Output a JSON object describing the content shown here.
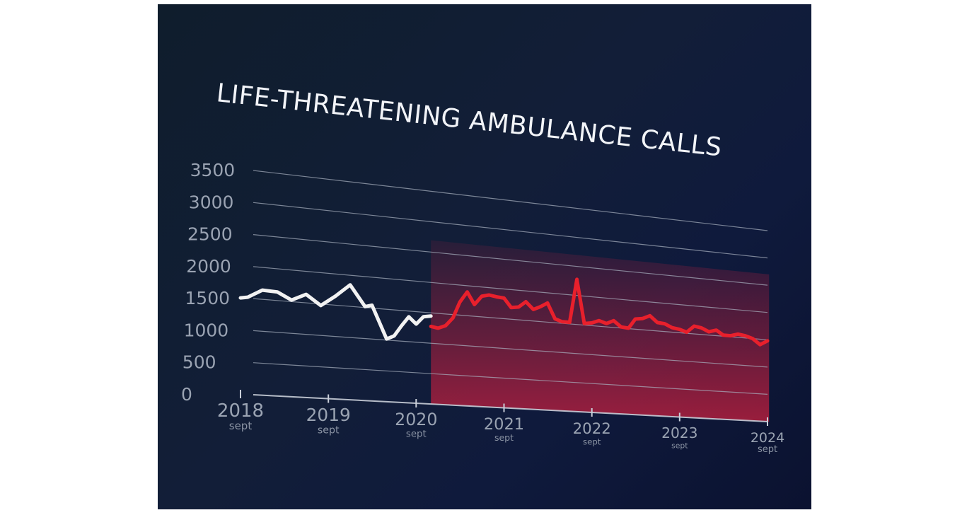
{
  "chart_data": {
    "type": "line",
    "title": "LIFE-THREATENING AMBULANCE CALLS",
    "xlabel": "",
    "ylabel": "",
    "ylim": [
      0,
      3500
    ],
    "y_ticks": [
      "0",
      "500",
      "1000",
      "1500",
      "2000",
      "2500",
      "3000",
      "3500"
    ],
    "x_ticks": [
      {
        "year": "2018",
        "sub": "sept"
      },
      {
        "year": "2019",
        "sub": "sept"
      },
      {
        "year": "2020",
        "sub": "sept"
      },
      {
        "year": "2021",
        "sub": "sept"
      },
      {
        "year": "2022",
        "sub": "sept"
      },
      {
        "year": "2023",
        "sub": "sept"
      },
      {
        "year": "2024",
        "sub": "sept"
      }
    ],
    "grid": true,
    "highlight_region": {
      "from": "2020-11",
      "to": "2024-09",
      "color": "#c8203f"
    },
    "series": [
      {
        "name": "",
        "color": "#f2f2f2",
        "x": [
          "2018-09",
          "2018-10",
          "2018-12",
          "2019-02",
          "2019-04",
          "2019-06",
          "2019-08",
          "2019-10",
          "2019-12",
          "2020-02",
          "2020-03",
          "2020-05",
          "2020-06",
          "2020-07",
          "2020-08",
          "2020-09",
          "2020-10",
          "2020-11"
        ],
        "values": [
          1500,
          1520,
          1650,
          1640,
          1530,
          1640,
          1480,
          1650,
          1850,
          1520,
          1550,
          1020,
          1080,
          1250,
          1410,
          1300,
          1430,
          1450
        ]
      },
      {
        "name": "",
        "color": "#e8202c",
        "x": [
          "2020-11",
          "2020-12",
          "2021-01",
          "2021-02",
          "2021-03",
          "2021-04",
          "2021-05",
          "2021-06",
          "2021-07",
          "2021-08",
          "2021-09",
          "2021-10",
          "2021-11",
          "2021-12",
          "2022-01",
          "2022-02",
          "2022-03",
          "2022-04",
          "2022-05",
          "2022-06",
          "2022-07",
          "2022-08",
          "2022-09",
          "2022-10",
          "2022-11",
          "2022-12",
          "2023-01",
          "2023-02",
          "2023-03",
          "2023-04",
          "2023-05",
          "2023-06",
          "2023-07",
          "2023-08",
          "2023-09",
          "2023-10",
          "2023-11",
          "2023-12",
          "2024-01",
          "2024-02",
          "2024-03",
          "2024-04",
          "2024-05",
          "2024-06",
          "2024-07",
          "2024-08",
          "2024-09"
        ],
        "values": [
          1280,
          1260,
          1310,
          1450,
          1720,
          1900,
          1700,
          1850,
          1880,
          1860,
          1850,
          1700,
          1720,
          1820,
          1700,
          1760,
          1830,
          1570,
          1530,
          1530,
          2280,
          1530,
          1550,
          1600,
          1560,
          1620,
          1520,
          1510,
          1680,
          1700,
          1760,
          1650,
          1640,
          1580,
          1560,
          1520,
          1640,
          1620,
          1560,
          1600,
          1520,
          1520,
          1560,
          1540,
          1500,
          1400,
          1480
        ]
      }
    ]
  }
}
